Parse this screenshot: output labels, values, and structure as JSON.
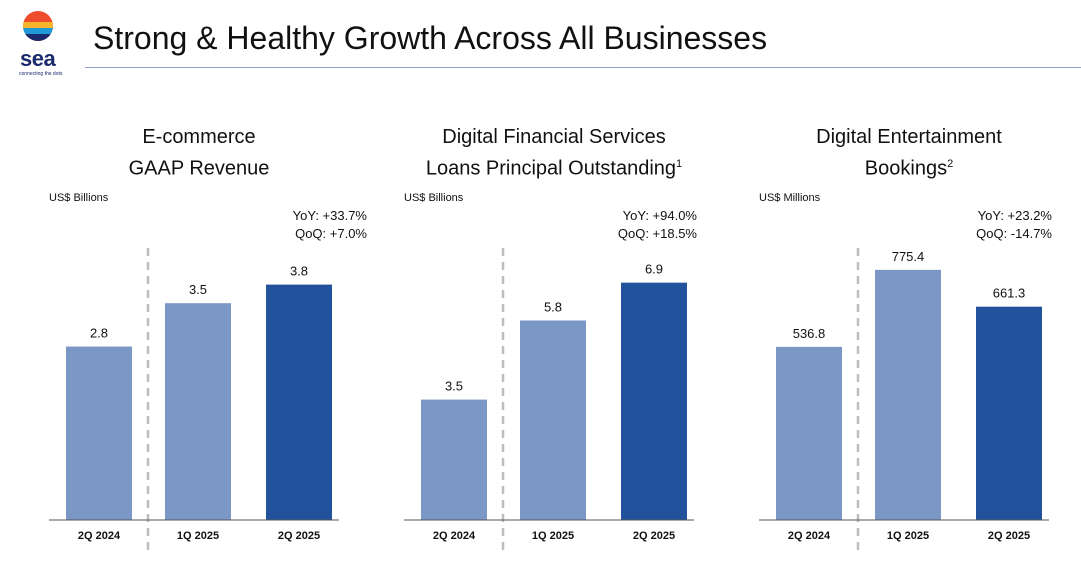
{
  "header": {
    "title": "Strong & Healthy Growth Across All Businesses",
    "logo_text": "sea",
    "logo_tagline": "connecting the dots"
  },
  "colors": {
    "light_bar": "#7a97c6",
    "dark_bar": "#21529b",
    "rule": "#8fa0c8"
  },
  "chart_data": [
    {
      "type": "bar",
      "title": "E-commerce GAAP Revenue",
      "title_lines": [
        "E-commerce",
        "GAAP Revenue"
      ],
      "footnote_mark": "",
      "unit": "US$ Billions",
      "yoy": "YoY: +33.7%",
      "qoq": "QoQ: +7.0%",
      "categories": [
        "2Q 2024",
        "1Q 2025",
        "2Q 2025"
      ],
      "values": [
        2.8,
        3.5,
        3.8
      ],
      "value_labels": [
        "2.8",
        "3.5",
        "3.8"
      ],
      "ylim": [
        0,
        4.52
      ]
    },
    {
      "type": "bar",
      "title": "Digital Financial Services Loans Principal Outstanding",
      "title_lines": [
        "Digital Financial Services",
        "Loans Principal Outstanding"
      ],
      "footnote_mark": "1",
      "unit": "US$ Billions",
      "yoy": "YoY: +94.0%",
      "qoq": "QoQ: +18.5%",
      "categories": [
        "2Q 2024",
        "1Q 2025",
        "2Q 2025"
      ],
      "values": [
        3.5,
        5.8,
        6.9
      ],
      "value_labels": [
        "3.5",
        "5.8",
        "6.9"
      ],
      "ylim": [
        0,
        8.14
      ]
    },
    {
      "type": "bar",
      "title": "Digital Entertainment Bookings",
      "title_lines": [
        "Digital Entertainment",
        "Bookings"
      ],
      "footnote_mark": "2",
      "unit": "US$ Millions",
      "yoy": "YoY: +23.2%",
      "qoq": "QoQ: -14.7%",
      "categories": [
        "2Q 2024",
        "1Q 2025",
        "2Q 2025"
      ],
      "values": [
        536.8,
        775.4,
        661.3
      ],
      "value_labels": [
        "536.8",
        "775.4",
        "661.3"
      ],
      "ylim": [
        0,
        868
      ]
    }
  ]
}
